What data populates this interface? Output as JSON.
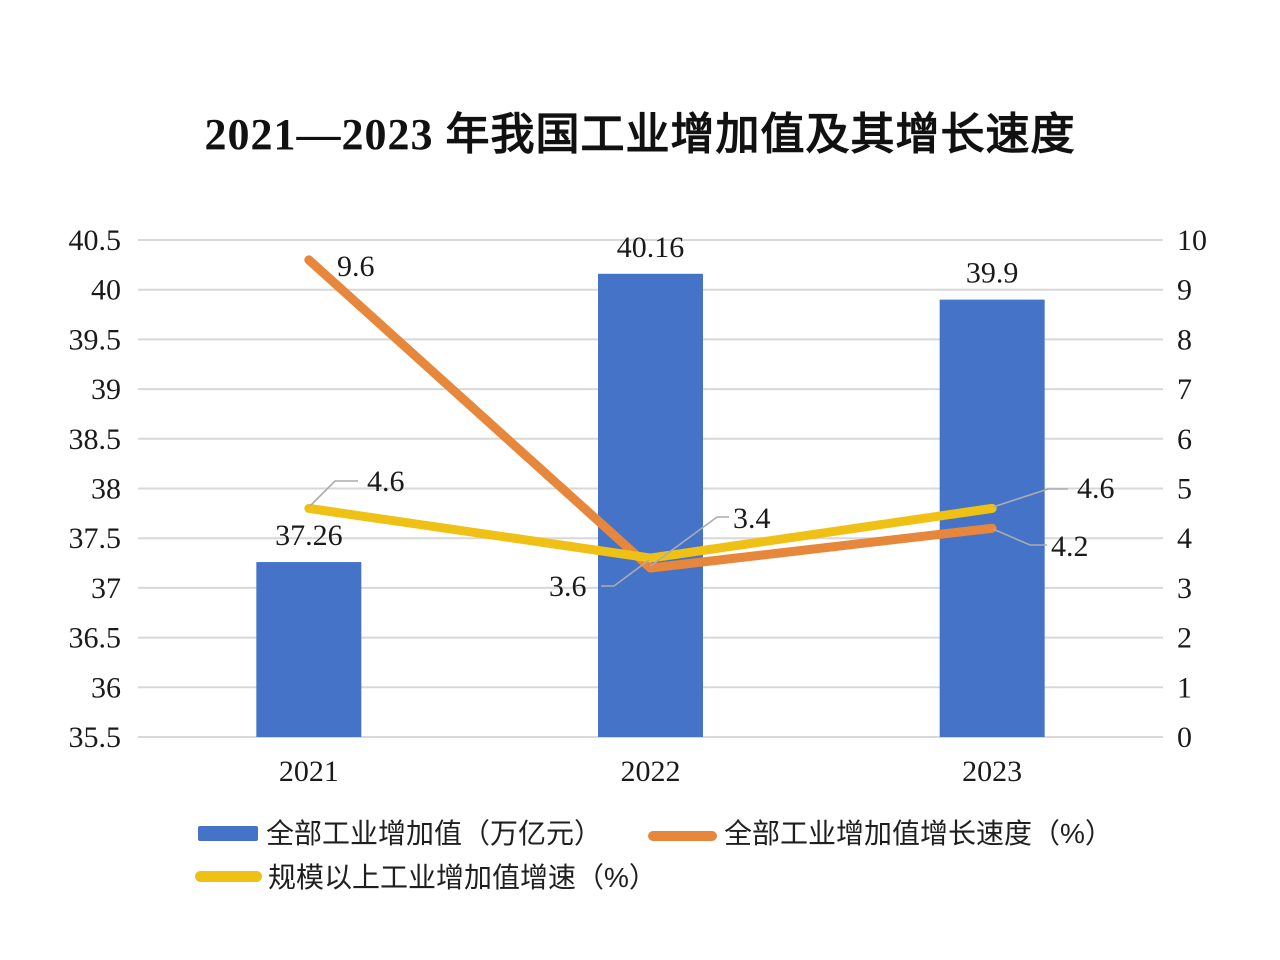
{
  "title": "2021—2023 年我国工业增加值及其增长速度",
  "colors": {
    "bar_blue": "#4573C8",
    "line_orange": "#E6873C",
    "line_yellow": "#F0C115",
    "gridline": "#D8D8D8",
    "leader": "#ACACAC",
    "text": "#1A1A1A"
  },
  "chart_data": {
    "type": "bar",
    "subtype": "combo bar + line, dual axis",
    "title": "2021—2023 年我国工业增加值及其增长速度",
    "categories": [
      "2021",
      "2022",
      "2023"
    ],
    "series": [
      {
        "name": "全部工业增加值（万亿元）",
        "type": "bar",
        "axis": "left",
        "color": "#4573C8",
        "values": [
          37.26,
          40.16,
          39.9
        ],
        "labels": [
          "37.26",
          "40.16",
          "39.9"
        ]
      },
      {
        "name": "全部工业增加值增长速度（%）",
        "type": "line",
        "axis": "right",
        "color": "#E6873C",
        "values": [
          9.6,
          3.4,
          4.2
        ],
        "labels": [
          "9.6",
          "3.4",
          "4.2"
        ]
      },
      {
        "name": "规模以上工业增加值增速（%）",
        "type": "line",
        "axis": "right",
        "color": "#F0C115",
        "values": [
          4.6,
          3.6,
          4.6
        ],
        "labels": [
          "4.6",
          "3.6",
          "4.6"
        ]
      }
    ],
    "left_axis": {
      "min": 35.5,
      "max": 40.5,
      "step": 0.5,
      "ticks": [
        "40.5",
        "40",
        "39.5",
        "39",
        "38.5",
        "38",
        "37.5",
        "37",
        "36.5",
        "36",
        "35.5"
      ]
    },
    "right_axis": {
      "min": 0,
      "max": 10,
      "step": 1,
      "ticks": [
        "10",
        "9",
        "8",
        "7",
        "6",
        "5",
        "4",
        "3",
        "2",
        "1",
        "0"
      ]
    },
    "grid": true,
    "legend_position": "bottom"
  }
}
